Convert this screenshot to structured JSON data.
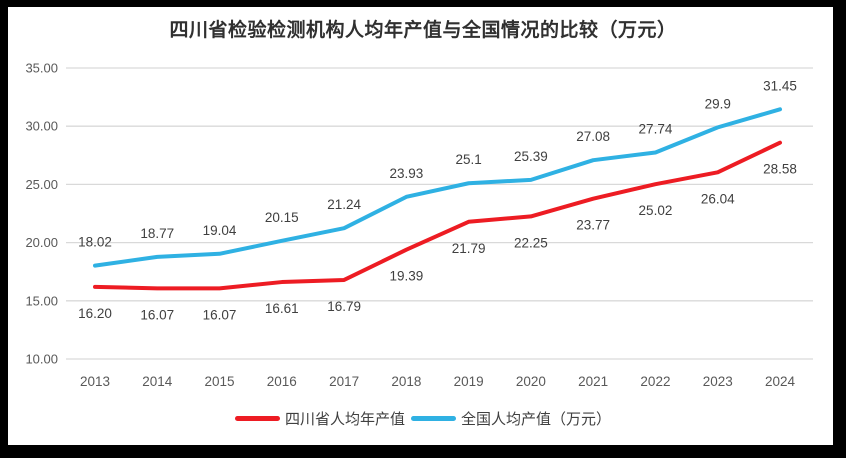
{
  "window": {
    "frame_color": "#000000",
    "background": "#ffffff"
  },
  "chart_data": {
    "type": "line",
    "title": "四川省检验检测机构人均年产值与全国情况的比较（万元）",
    "categories": [
      "2013",
      "2014",
      "2015",
      "2016",
      "2017",
      "2018",
      "2019",
      "2020",
      "2021",
      "2022",
      "2023",
      "2024"
    ],
    "series": [
      {
        "name": "四川省人均年产值",
        "color": "#ed1c23",
        "values": [
          16.2,
          16.07,
          16.07,
          16.61,
          16.79,
          19.39,
          21.79,
          22.25,
          23.77,
          25.02,
          26.04,
          28.58
        ],
        "labels": [
          "16.20",
          "16.07",
          "16.07",
          "16.61",
          "16.79",
          "19.39",
          "21.79",
          "22.25",
          "23.77",
          "25.02",
          "26.04",
          "28.58"
        ],
        "label_position": "below"
      },
      {
        "name": "全国人均产值（万元）",
        "color": "#2fb1e3",
        "values": [
          18.02,
          18.77,
          19.04,
          20.15,
          21.24,
          23.93,
          25.1,
          25.39,
          27.08,
          27.74,
          29.9,
          31.45
        ],
        "labels": [
          "18.02",
          "18.77",
          "19.04",
          "20.15",
          "21.24",
          "23.93",
          "25.1",
          "25.39",
          "27.08",
          "27.74",
          "29.9",
          "31.45"
        ],
        "label_position": "above"
      }
    ],
    "y_axis": {
      "min": 10,
      "max": 35,
      "step": 5,
      "tick_labels": [
        "10.00",
        "15.00",
        "20.00",
        "25.00",
        "30.00",
        "35.00"
      ]
    },
    "xlabel": "",
    "ylabel": "",
    "grid": "horizontal",
    "gridline_color": "#d9d9d9",
    "data_label_color": "#404040",
    "axis_text_color": "#595959",
    "legend_position": "bottom"
  }
}
